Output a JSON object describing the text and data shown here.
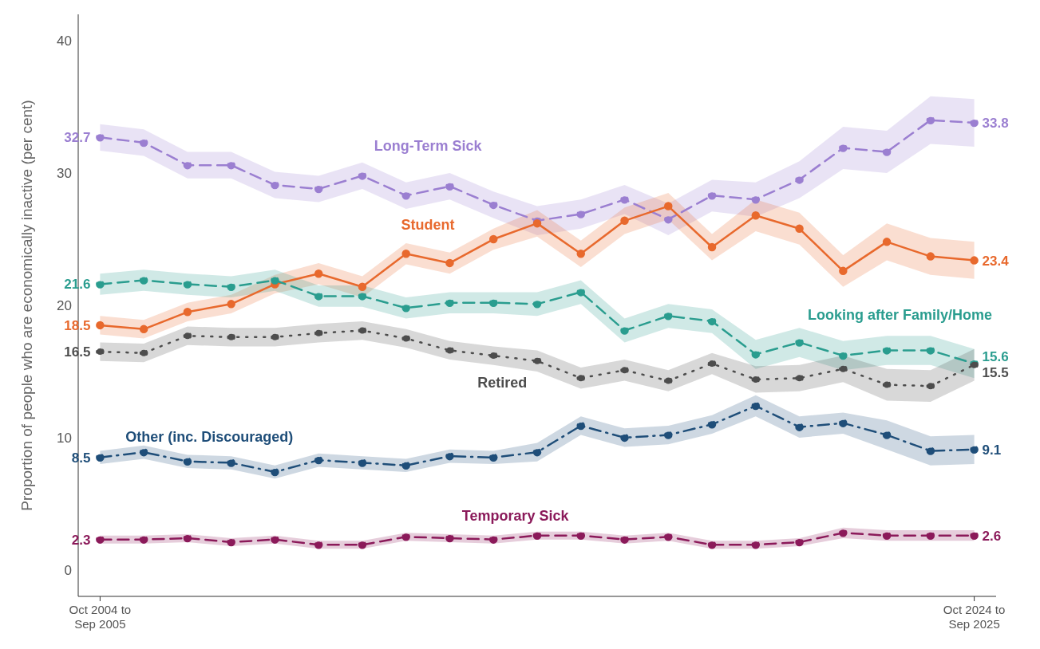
{
  "chart_data": {
    "type": "line",
    "ylabel": "Proportion of people who are economically inactive (per cent)",
    "categories": [
      "Oct 2004 to\nSep 2005",
      null,
      null,
      null,
      null,
      null,
      null,
      null,
      null,
      null,
      null,
      null,
      null,
      null,
      null,
      null,
      null,
      null,
      null,
      null,
      "Oct 2024 to\nSep 2025"
    ],
    "ylim": [
      -2,
      42
    ],
    "yticks": [
      0,
      10,
      20,
      30,
      40
    ],
    "marker": "circle",
    "series": [
      {
        "name": "Long-Term Sick",
        "color": "#9b7fd1",
        "line_style": "dashed",
        "values": [
          32.7,
          32.3,
          30.6,
          30.6,
          29.1,
          28.8,
          29.8,
          28.3,
          29.0,
          27.6,
          26.4,
          26.9,
          28.0,
          26.5,
          28.3,
          28.0,
          29.5,
          31.9,
          31.6,
          34.0,
          33.8
        ],
        "lower": [
          31.7,
          31.3,
          29.6,
          29.6,
          28.1,
          27.8,
          28.8,
          27.3,
          28.0,
          26.6,
          25.3,
          25.8,
          26.9,
          25.3,
          27.1,
          26.7,
          28.1,
          30.3,
          30.0,
          32.2,
          32.0
        ],
        "upper": [
          33.7,
          33.3,
          31.6,
          31.6,
          30.1,
          29.8,
          30.8,
          29.3,
          30.0,
          28.6,
          27.5,
          28.0,
          29.1,
          27.7,
          29.5,
          29.3,
          30.9,
          33.5,
          33.2,
          35.8,
          35.6
        ],
        "value_labels": [
          "32.7",
          null,
          null,
          null,
          null,
          null,
          null,
          null,
          null,
          null,
          null,
          null,
          null,
          null,
          null,
          null,
          null,
          null,
          null,
          null,
          "33.8"
        ]
      },
      {
        "name": "Student",
        "color": "#e8692d",
        "line_style": "solid",
        "values": [
          18.5,
          18.2,
          19.5,
          20.1,
          21.6,
          22.4,
          21.4,
          23.9,
          23.2,
          25.0,
          26.2,
          23.9,
          26.4,
          27.5,
          24.4,
          26.8,
          25.8,
          22.6,
          24.8,
          23.7,
          23.4
        ],
        "lower": [
          17.8,
          17.5,
          18.8,
          19.4,
          20.9,
          21.6,
          20.6,
          23.1,
          22.4,
          24.2,
          25.2,
          22.9,
          25.4,
          26.5,
          23.4,
          25.6,
          24.6,
          21.4,
          23.4,
          22.3,
          22.0
        ],
        "upper": [
          19.2,
          18.9,
          20.2,
          20.8,
          22.3,
          23.2,
          22.2,
          24.7,
          24.0,
          25.8,
          27.2,
          24.9,
          27.4,
          28.5,
          25.4,
          28.0,
          27.0,
          23.8,
          26.2,
          25.1,
          24.8
        ],
        "value_labels": [
          "18.5",
          null,
          null,
          null,
          null,
          null,
          null,
          null,
          null,
          null,
          null,
          null,
          null,
          null,
          null,
          null,
          null,
          null,
          null,
          null,
          "23.4"
        ]
      },
      {
        "name": "Looking after Family/Home",
        "color": "#2a9d8f",
        "line_style": "dashed",
        "values": [
          21.6,
          21.9,
          21.6,
          21.4,
          21.9,
          20.7,
          20.7,
          19.8,
          20.2,
          20.2,
          20.1,
          21.0,
          18.1,
          19.2,
          18.8,
          16.3,
          17.2,
          16.2,
          16.6,
          16.6,
          15.6
        ],
        "lower": [
          20.8,
          21.1,
          20.8,
          20.6,
          21.1,
          19.9,
          19.9,
          19.0,
          19.4,
          19.4,
          19.2,
          20.1,
          17.2,
          18.3,
          17.9,
          15.2,
          16.1,
          15.1,
          15.5,
          15.5,
          14.5
        ],
        "upper": [
          22.4,
          22.7,
          22.4,
          22.2,
          22.7,
          21.5,
          21.5,
          20.6,
          21.0,
          21.0,
          21.0,
          21.9,
          19.0,
          20.1,
          19.7,
          17.4,
          18.3,
          17.3,
          17.7,
          17.7,
          16.7
        ],
        "value_labels": [
          "21.6",
          null,
          null,
          null,
          null,
          null,
          null,
          null,
          null,
          null,
          null,
          null,
          null,
          null,
          null,
          null,
          null,
          null,
          null,
          null,
          "15.6"
        ]
      },
      {
        "name": "Retired",
        "color": "#4d4d4d",
        "line_style": "dotted",
        "values": [
          16.5,
          16.4,
          17.7,
          17.6,
          17.6,
          17.9,
          18.1,
          17.5,
          16.6,
          16.2,
          15.8,
          14.5,
          15.1,
          14.3,
          15.6,
          14.4,
          14.5,
          15.2,
          14.0,
          13.9,
          15.5
        ],
        "lower": [
          15.8,
          15.7,
          17.0,
          16.9,
          16.9,
          17.2,
          17.4,
          16.8,
          15.9,
          15.5,
          15.0,
          13.7,
          14.3,
          13.5,
          14.8,
          13.4,
          13.5,
          14.2,
          12.8,
          12.7,
          14.3
        ],
        "upper": [
          17.2,
          17.1,
          18.4,
          18.3,
          18.3,
          18.6,
          18.8,
          18.2,
          17.3,
          16.9,
          16.6,
          15.3,
          15.9,
          15.1,
          16.4,
          15.4,
          15.5,
          16.2,
          15.2,
          15.1,
          16.7
        ],
        "value_labels": [
          "16.5",
          null,
          null,
          null,
          null,
          null,
          null,
          null,
          null,
          null,
          null,
          null,
          null,
          null,
          null,
          null,
          null,
          null,
          null,
          null,
          "15.5"
        ]
      },
      {
        "name": "Other (inc. Discouraged)",
        "color": "#1f4e79",
        "line_style": "dashdot",
        "values": [
          8.5,
          8.9,
          8.2,
          8.1,
          7.4,
          8.3,
          8.1,
          7.9,
          8.6,
          8.5,
          8.9,
          10.9,
          10.0,
          10.2,
          11.0,
          12.4,
          10.8,
          11.1,
          10.2,
          9.0,
          9.1
        ],
        "lower": [
          8.0,
          8.4,
          7.7,
          7.6,
          6.9,
          7.8,
          7.6,
          7.4,
          8.1,
          8.0,
          8.2,
          10.2,
          9.3,
          9.5,
          10.3,
          11.6,
          10.0,
          10.3,
          9.1,
          7.9,
          8.0
        ],
        "upper": [
          9.0,
          9.4,
          8.7,
          8.6,
          7.9,
          8.8,
          8.6,
          8.4,
          9.1,
          9.0,
          9.6,
          11.6,
          10.7,
          10.9,
          11.7,
          13.2,
          11.6,
          11.9,
          11.3,
          10.1,
          10.2
        ],
        "value_labels": [
          "8.5",
          null,
          null,
          null,
          null,
          null,
          null,
          null,
          null,
          null,
          null,
          null,
          null,
          null,
          null,
          null,
          null,
          null,
          null,
          null,
          "9.1"
        ]
      },
      {
        "name": "Temporary Sick",
        "color": "#8b1a5a",
        "line_style": "dashed",
        "values": [
          2.3,
          2.3,
          2.4,
          2.1,
          2.3,
          1.9,
          1.9,
          2.5,
          2.4,
          2.3,
          2.6,
          2.6,
          2.3,
          2.5,
          1.9,
          1.9,
          2.1,
          2.8,
          2.6,
          2.6,
          2.6
        ],
        "lower": [
          2.0,
          2.0,
          2.1,
          1.8,
          2.0,
          1.6,
          1.6,
          2.2,
          2.1,
          2.0,
          2.3,
          2.3,
          2.0,
          2.2,
          1.6,
          1.6,
          1.8,
          2.4,
          2.2,
          2.2,
          2.2
        ],
        "upper": [
          2.6,
          2.6,
          2.7,
          2.4,
          2.6,
          2.2,
          2.2,
          2.8,
          2.7,
          2.6,
          2.9,
          2.9,
          2.6,
          2.8,
          2.2,
          2.2,
          2.4,
          3.2,
          3.0,
          3.0,
          3.0
        ],
        "value_labels": [
          "2.3",
          null,
          null,
          null,
          null,
          null,
          null,
          null,
          null,
          null,
          null,
          null,
          null,
          null,
          null,
          null,
          null,
          null,
          null,
          null,
          "2.6"
        ]
      }
    ]
  }
}
